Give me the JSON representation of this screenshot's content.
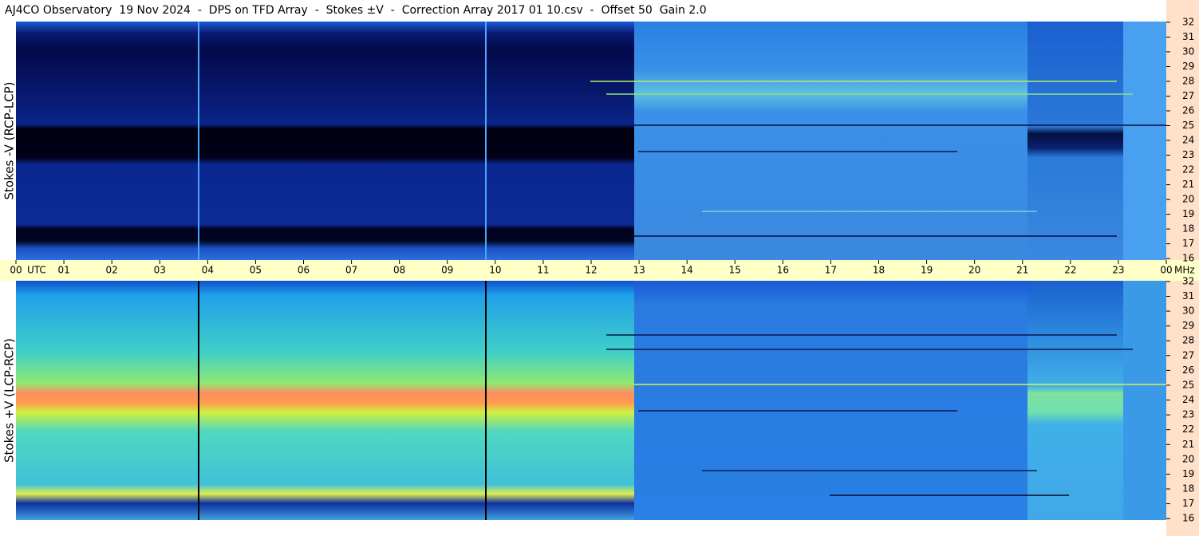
{
  "title": "AJ4CO Observatory  19 Nov 2024  -  DPS on TFD Array  -  Stokes ±V  -  Correction Array 2017 01 10.csv  -  Offset 50  Gain 2.0",
  "chart_data": [
    {
      "type": "heatmap",
      "ylabel": "Stokes -V (RCP-LCP)",
      "ylim": [
        15.9,
        32.05
      ],
      "yticks": [
        16,
        17,
        18,
        19,
        20,
        21,
        22,
        23,
        24,
        25,
        26,
        27,
        28,
        29,
        30,
        31,
        32
      ],
      "y_unit": "MHz",
      "x_unit": "UTC",
      "xlim": [
        0,
        24
      ],
      "xticks": [
        {
          "value": 0,
          "label": "00"
        },
        {
          "value": 1,
          "label": "01"
        },
        {
          "value": 2,
          "label": "02"
        },
        {
          "value": 3,
          "label": "03"
        },
        {
          "value": 4,
          "label": "04"
        },
        {
          "value": 5,
          "label": "05"
        },
        {
          "value": 6,
          "label": "06"
        },
        {
          "value": 7,
          "label": "07"
        },
        {
          "value": 8,
          "label": "08"
        },
        {
          "value": 9,
          "label": "09"
        },
        10,
        11,
        12,
        13,
        14,
        15,
        16,
        17,
        18,
        19,
        20,
        21,
        22,
        23,
        {
          "value": 24,
          "label": "00"
        }
      ]
    },
    {
      "type": "heatmap",
      "ylabel": "Stokes +V (LCP-RCP)",
      "ylim": [
        15.9,
        32.05
      ],
      "yticks": [
        16,
        17,
        18,
        19,
        20,
        21,
        22,
        23,
        24,
        25,
        26,
        27,
        28,
        29,
        30,
        31,
        32
      ]
    }
  ]
}
